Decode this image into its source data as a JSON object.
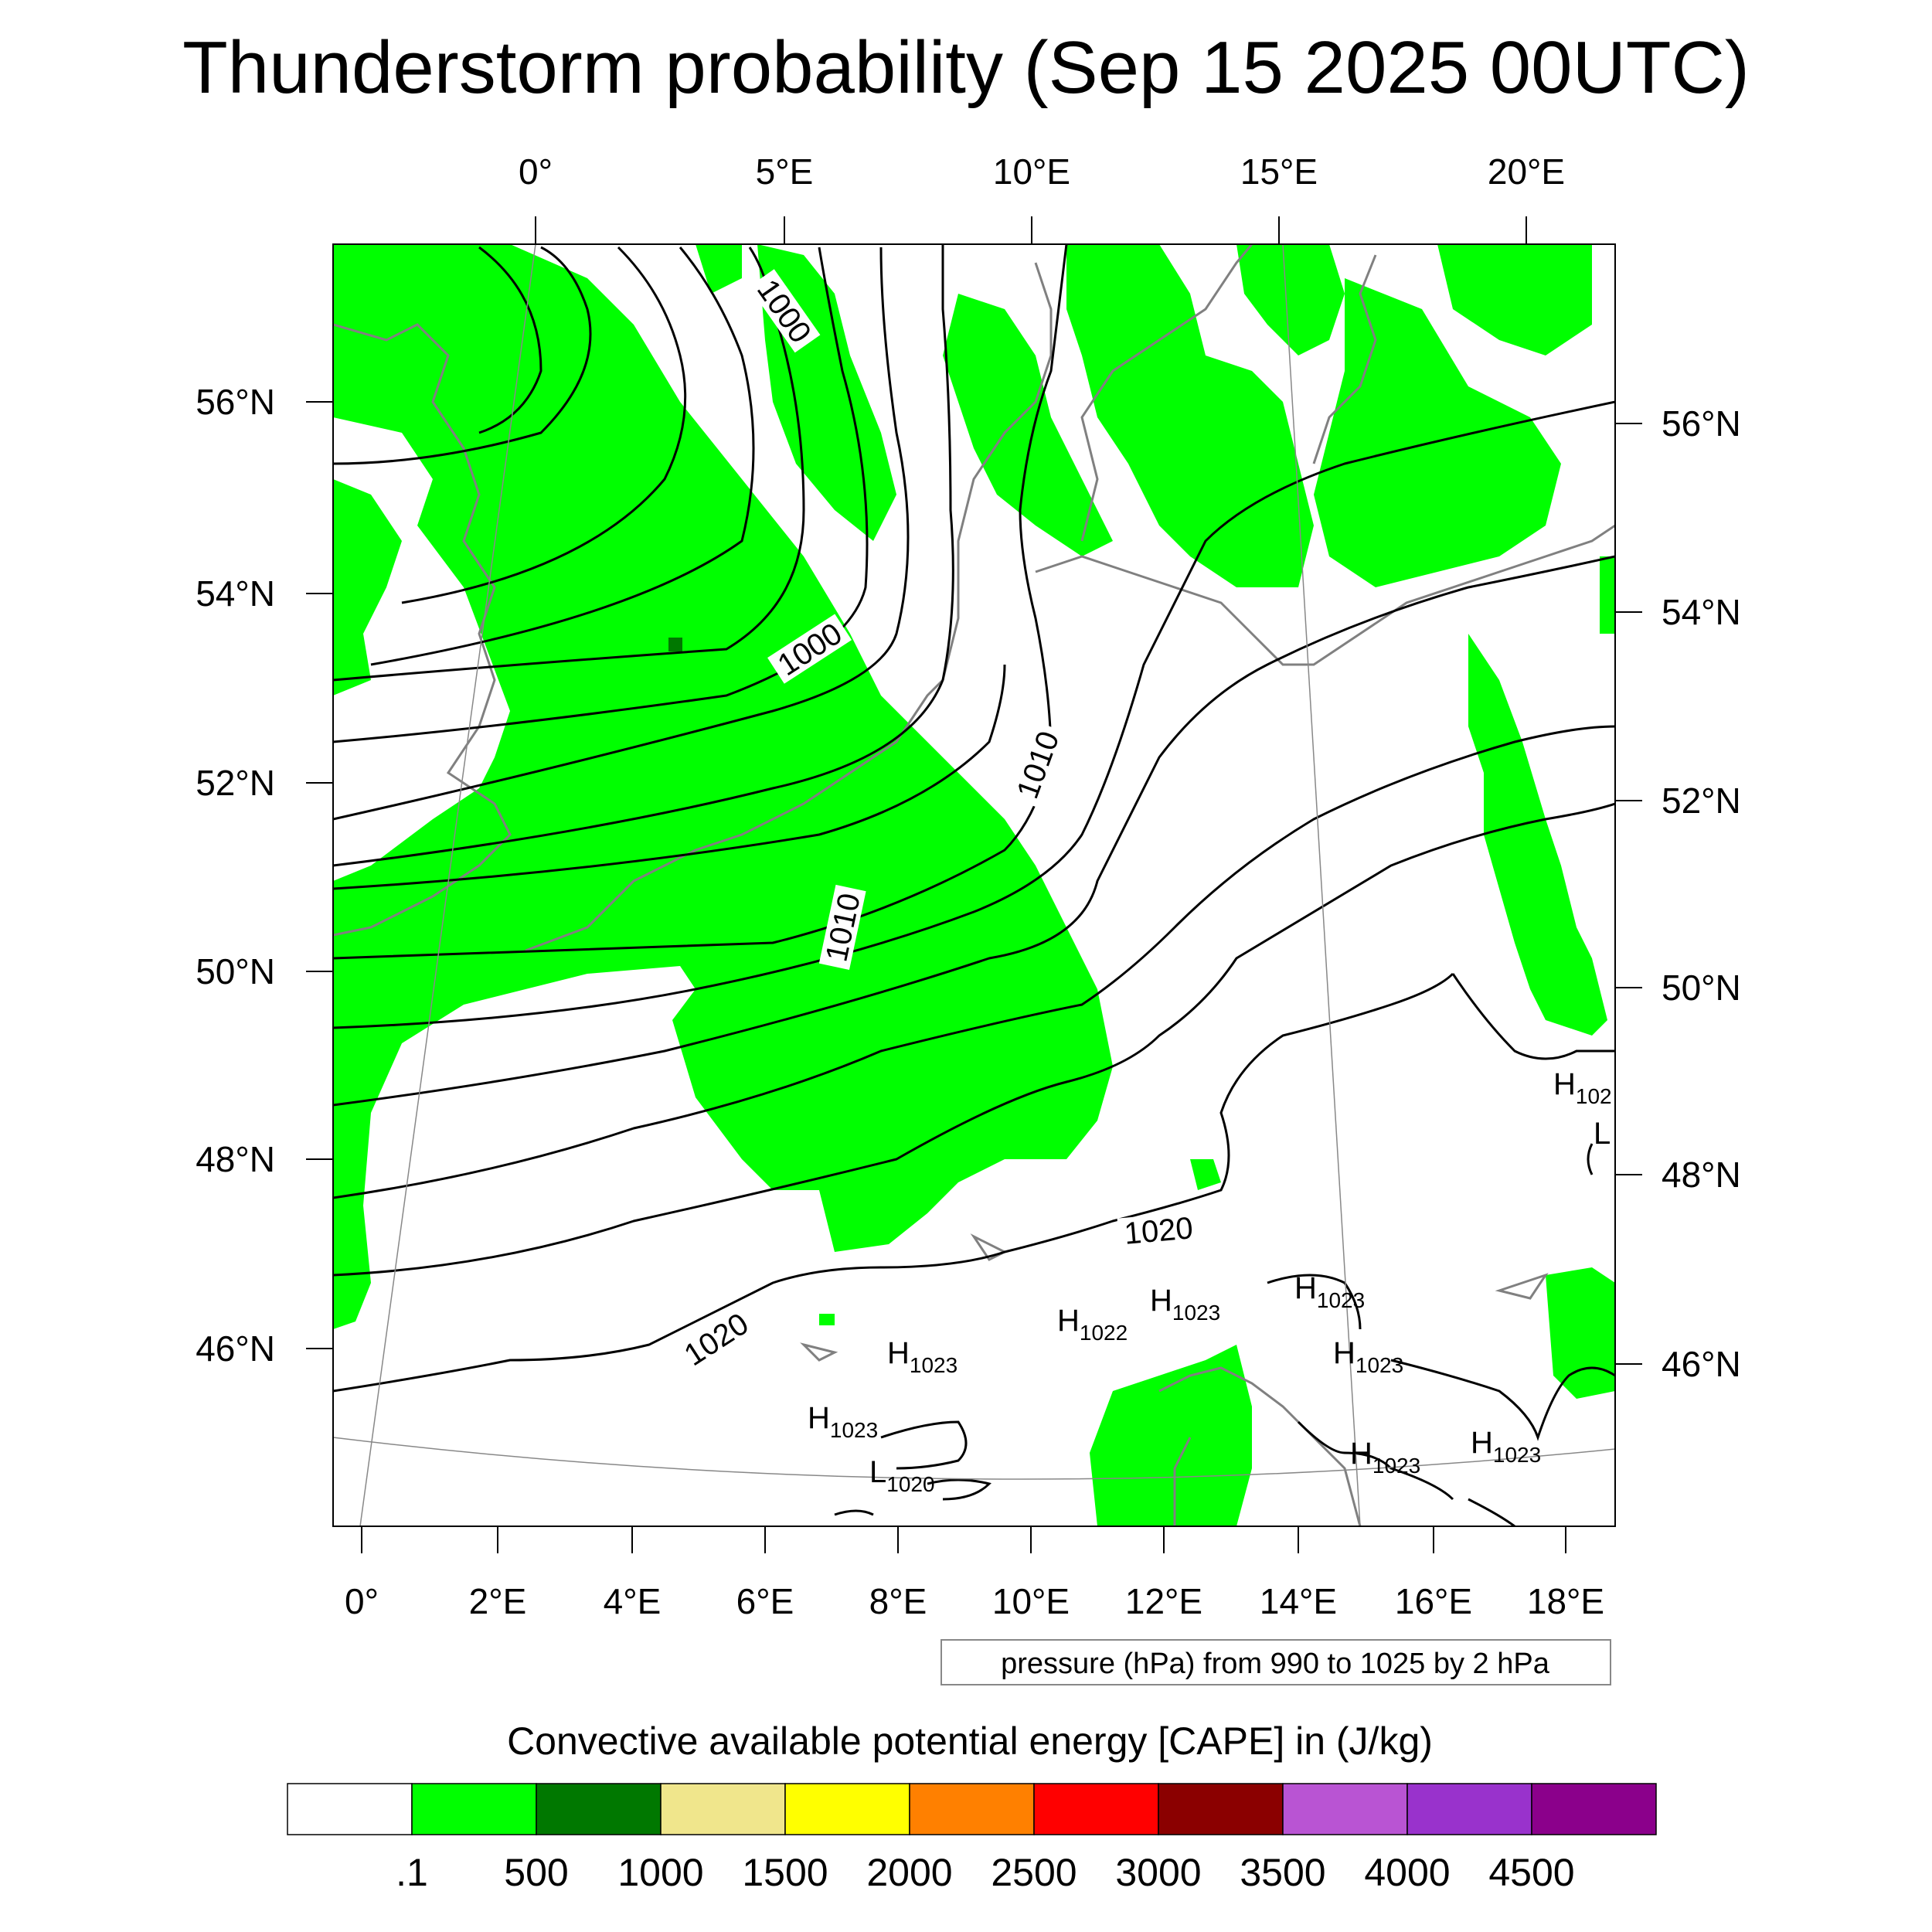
{
  "title": "Thunderstorm probability (Sep 15 2025 00UTC)",
  "top_lon_labels": [
    "0°",
    "5°E",
    "10°E",
    "15°E",
    "20°E"
  ],
  "bottom_lon_labels": [
    "0°",
    "2°E",
    "4°E",
    "6°E",
    "8°E",
    "10°E",
    "12°E",
    "14°E",
    "16°E",
    "18°E"
  ],
  "left_lat_labels": [
    "56°N",
    "54°N",
    "52°N",
    "50°N",
    "48°N",
    "46°N"
  ],
  "right_lat_labels": [
    "56°N",
    "54°N",
    "52°N",
    "50°N",
    "48°N",
    "46°N"
  ],
  "isobar_labels": [
    "1000",
    "1000",
    "1010",
    "1010",
    "1020",
    "1020"
  ],
  "pressure_centers": [
    {
      "letter": "H",
      "value": "102"
    },
    {
      "letter": "L",
      "value": ""
    },
    {
      "letter": "H",
      "value": "1023"
    },
    {
      "letter": "H",
      "value": "1023"
    },
    {
      "letter": "H",
      "value": "1022"
    },
    {
      "letter": "H",
      "value": "1023"
    },
    {
      "letter": "H",
      "value": "1023"
    },
    {
      "letter": "H",
      "value": "1023"
    },
    {
      "letter": "H",
      "value": "1023"
    },
    {
      "letter": "H",
      "value": "1023"
    },
    {
      "letter": "L",
      "value": "1020"
    }
  ],
  "contour_note": "pressure (hPa) from 990 to 1025 by 2 hPa",
  "colorbar": {
    "title": "Convective available potential energy [CAPE] in (J/kg)",
    "colors": [
      "#ffffff",
      "#00ff00",
      "#007800",
      "#f0e68c",
      "#ffff00",
      "#ff8000",
      "#ff0000",
      "#8b0000",
      "#b954d3",
      "#9932cc",
      "#8b008b"
    ],
    "ticks": [
      ".1",
      "500",
      "1000",
      "1500",
      "2000",
      "2500",
      "3000",
      "3500",
      "4000",
      "4500"
    ]
  },
  "colors": {
    "cape_low": "#00ff00",
    "cape_mid": "#007800",
    "coastline": "#808080",
    "isobar": "#000000"
  }
}
